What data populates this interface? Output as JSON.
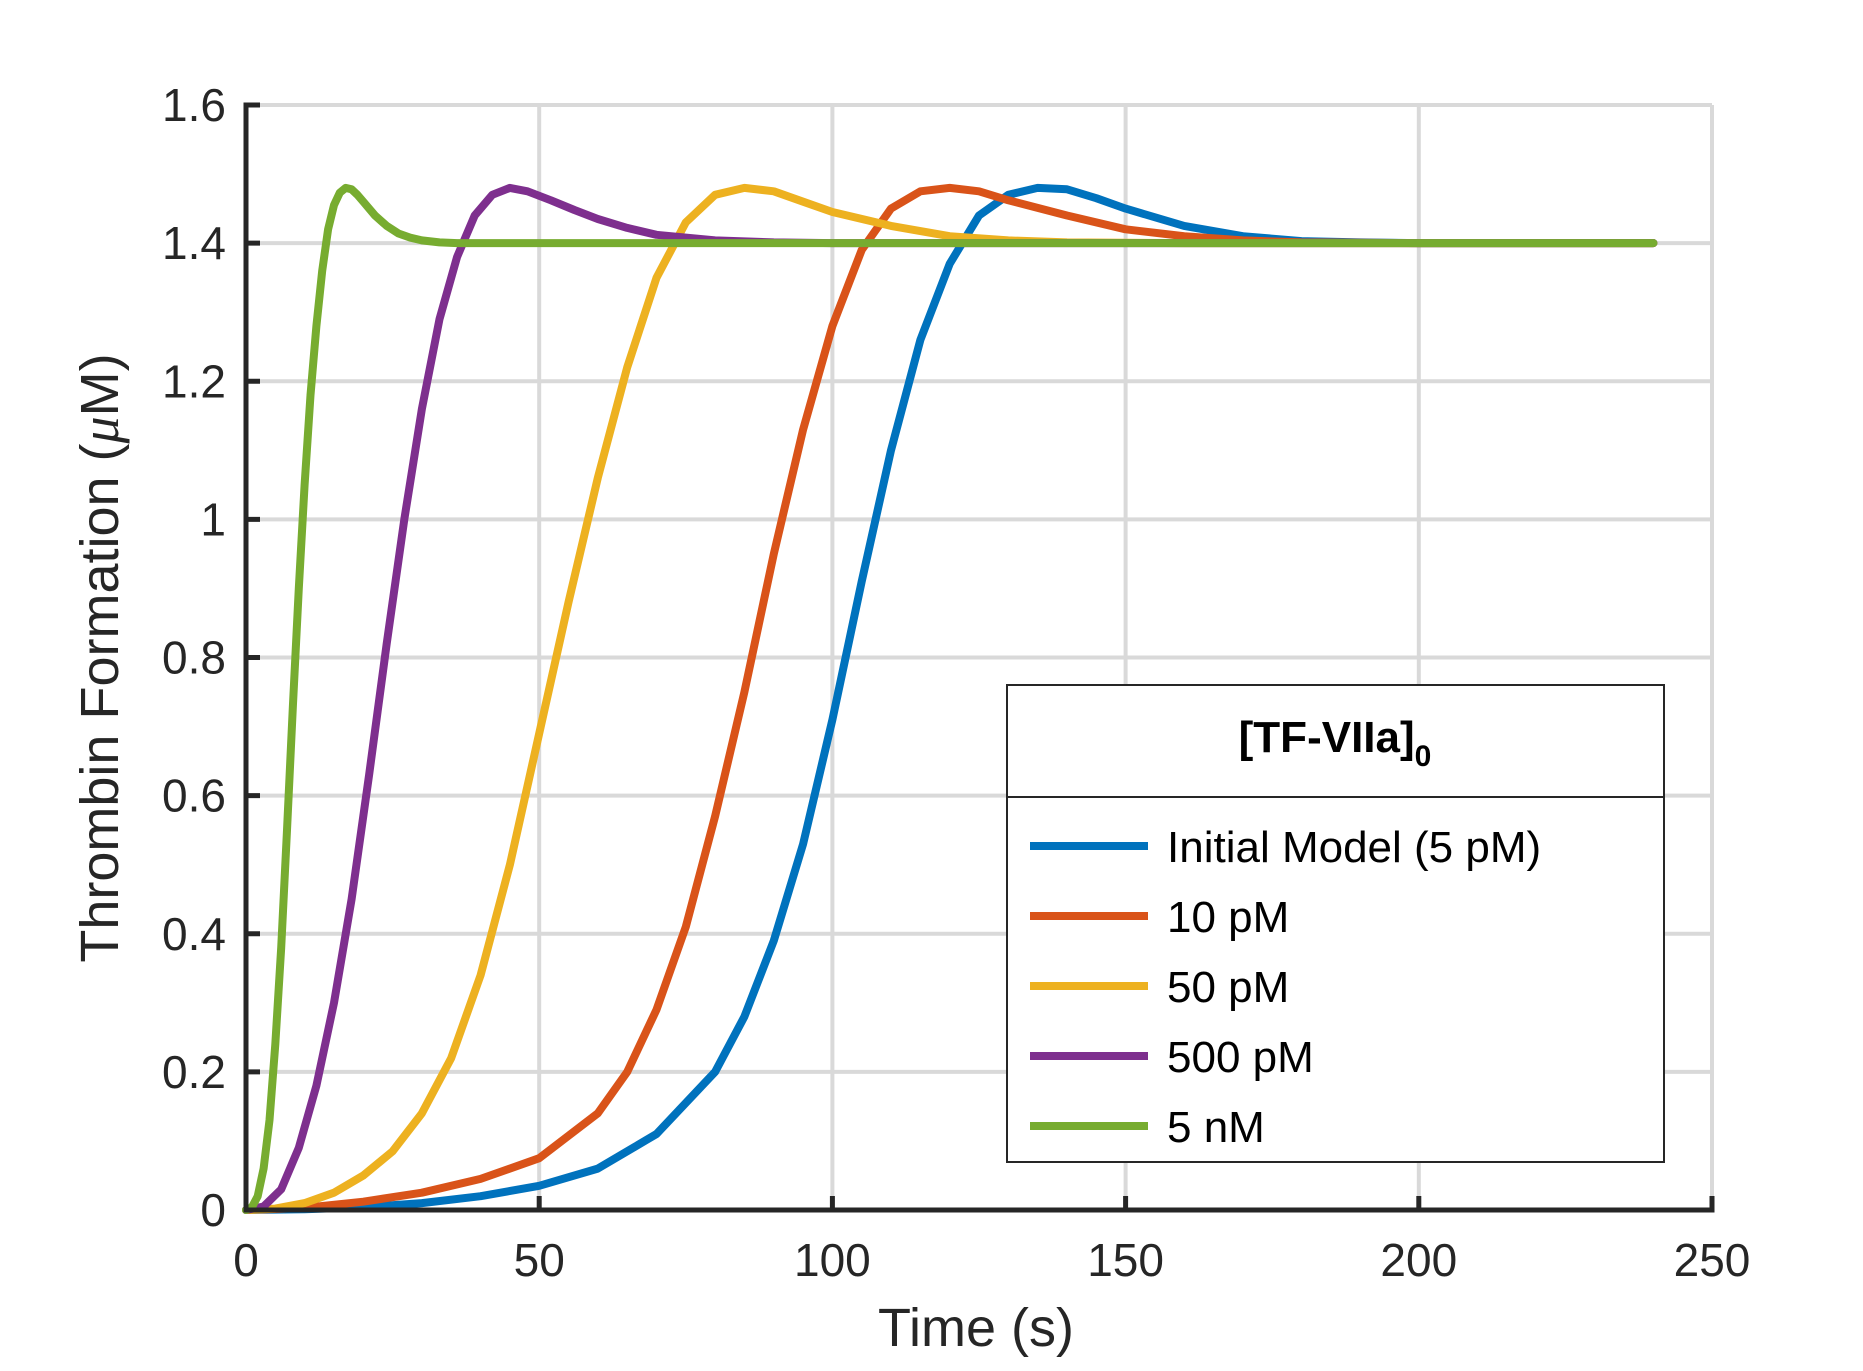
{
  "chart_data": {
    "type": "line",
    "xlabel": "Time (s)",
    "ylabel_prefix": "Thrombin Formation (",
    "ylabel_mu": "μ",
    "ylabel_suffix": "M)",
    "xlim": [
      0,
      250
    ],
    "ylim": [
      0,
      1.6
    ],
    "xticks": [
      0,
      50,
      100,
      150,
      200,
      250
    ],
    "xtick_labels": [
      "0",
      "50",
      "100",
      "150",
      "200",
      "250"
    ],
    "yticks": [
      0,
      0.2,
      0.4,
      0.6,
      0.8,
      1.0,
      1.2,
      1.4,
      1.6
    ],
    "ytick_labels": [
      "0",
      "0.2",
      "0.4",
      "0.6",
      "0.8",
      "1",
      "1.2",
      "1.4",
      "1.6"
    ],
    "grid": true,
    "legend": {
      "title_main": "[TF-VIIa]",
      "title_sub": "0",
      "placement": "lower-right"
    },
    "series": [
      {
        "name": "Initial Model (5 pM)",
        "color": "#0072BD",
        "x": [
          0,
          10,
          20,
          30,
          40,
          50,
          60,
          70,
          80,
          85,
          90,
          95,
          100,
          105,
          110,
          115,
          120,
          125,
          130,
          135,
          140,
          145,
          150,
          160,
          170,
          180,
          190,
          200,
          220,
          240
        ],
        "y": [
          0,
          0.001,
          0.004,
          0.01,
          0.02,
          0.035,
          0.06,
          0.11,
          0.2,
          0.28,
          0.39,
          0.53,
          0.71,
          0.91,
          1.1,
          1.26,
          1.37,
          1.44,
          1.47,
          1.48,
          1.478,
          1.465,
          1.45,
          1.425,
          1.41,
          1.403,
          1.401,
          1.4,
          1.4,
          1.4
        ]
      },
      {
        "name": "10 pM",
        "color": "#D95319",
        "x": [
          0,
          10,
          20,
          30,
          40,
          50,
          60,
          65,
          70,
          75,
          80,
          85,
          90,
          95,
          100,
          105,
          110,
          115,
          120,
          125,
          130,
          140,
          150,
          160,
          170,
          180,
          200,
          220,
          240
        ],
        "y": [
          0,
          0.003,
          0.012,
          0.025,
          0.045,
          0.075,
          0.14,
          0.2,
          0.29,
          0.41,
          0.57,
          0.75,
          0.95,
          1.13,
          1.28,
          1.39,
          1.45,
          1.475,
          1.48,
          1.475,
          1.462,
          1.44,
          1.42,
          1.41,
          1.404,
          1.401,
          1.4,
          1.4,
          1.4
        ]
      },
      {
        "name": "50 pM",
        "color": "#EDB120",
        "x": [
          0,
          5,
          10,
          15,
          20,
          25,
          30,
          35,
          40,
          45,
          50,
          55,
          60,
          65,
          70,
          75,
          80,
          85,
          90,
          95,
          100,
          110,
          120,
          130,
          140,
          160,
          180,
          200,
          220,
          240
        ],
        "y": [
          0,
          0.002,
          0.01,
          0.025,
          0.05,
          0.085,
          0.14,
          0.22,
          0.34,
          0.5,
          0.69,
          0.88,
          1.06,
          1.22,
          1.35,
          1.43,
          1.47,
          1.48,
          1.475,
          1.46,
          1.445,
          1.425,
          1.41,
          1.404,
          1.401,
          1.4,
          1.4,
          1.4,
          1.4,
          1.4
        ]
      },
      {
        "name": "500 pM",
        "color": "#7E2F8E",
        "x": [
          0,
          3,
          6,
          9,
          12,
          15,
          18,
          21,
          24,
          27,
          30,
          33,
          36,
          39,
          42,
          45,
          48,
          52,
          56,
          60,
          65,
          70,
          80,
          90,
          100,
          120,
          150,
          200,
          240
        ],
        "y": [
          0,
          0.005,
          0.03,
          0.09,
          0.18,
          0.3,
          0.45,
          0.63,
          0.82,
          1.0,
          1.16,
          1.29,
          1.38,
          1.44,
          1.47,
          1.48,
          1.475,
          1.462,
          1.448,
          1.435,
          1.422,
          1.412,
          1.404,
          1.401,
          1.4,
          1.4,
          1.4,
          1.4,
          1.4
        ]
      },
      {
        "name": "5 nM",
        "color": "#77AC30",
        "x": [
          0,
          1,
          2,
          3,
          4,
          5,
          6,
          7,
          8,
          9,
          10,
          11,
          12,
          13,
          14,
          15,
          16,
          17,
          18,
          19,
          20,
          22,
          24,
          26,
          28,
          30,
          33,
          36,
          40,
          50,
          70,
          100,
          150,
          200,
          240
        ],
        "y": [
          0,
          0.004,
          0.02,
          0.06,
          0.13,
          0.24,
          0.38,
          0.55,
          0.73,
          0.9,
          1.05,
          1.18,
          1.28,
          1.36,
          1.42,
          1.455,
          1.473,
          1.48,
          1.478,
          1.47,
          1.46,
          1.44,
          1.425,
          1.414,
          1.408,
          1.404,
          1.401,
          1.4,
          1.4,
          1.4,
          1.4,
          1.4,
          1.4,
          1.4,
          1.4
        ]
      }
    ]
  }
}
